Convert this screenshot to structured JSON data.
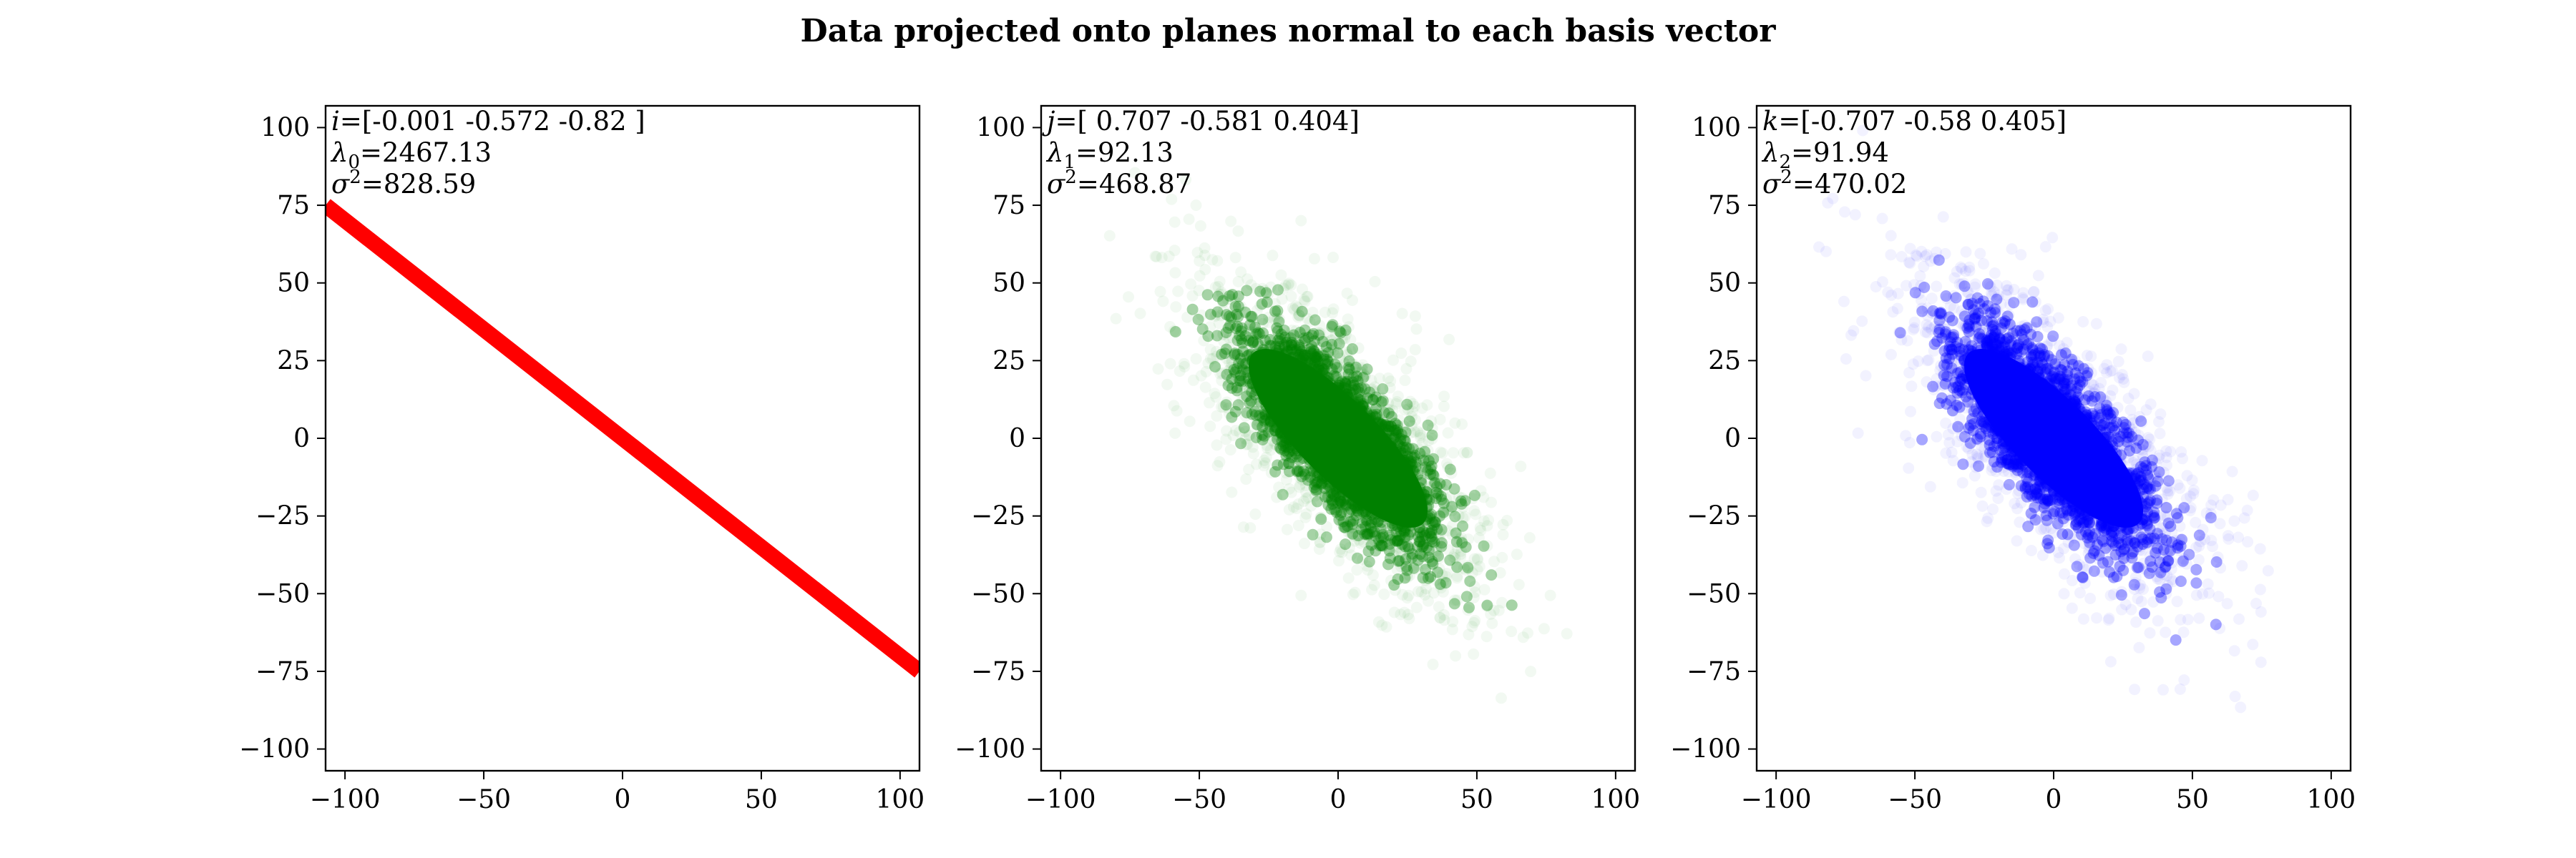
{
  "figure": {
    "title": "Data projected onto planes normal to each basis vector"
  },
  "chart_data": [
    {
      "type": "scatter",
      "title": "",
      "xlabel": "",
      "ylabel": "",
      "xlim": [
        -107,
        107
      ],
      "ylim": [
        -107,
        107
      ],
      "xticks": [
        -100,
        -50,
        0,
        50,
        100
      ],
      "yticks": [
        -100,
        -75,
        -50,
        -25,
        0,
        25,
        50,
        75,
        100
      ],
      "color": "#ff0000",
      "annotation": {
        "vector_label": "i",
        "vector_value": "=[-0.001 -0.572 -0.82 ]",
        "eigen_label": "λ",
        "eigen_index": "0",
        "eigen_value": "=2467.13",
        "variance_label": "σ",
        "variance_exp": "2",
        "variance_value": "=828.59"
      },
      "series": [
        {
          "shape": "line",
          "x": [
            -107,
            107
          ],
          "y": [
            75,
            -75
          ]
        }
      ]
    },
    {
      "type": "scatter",
      "title": "",
      "xlabel": "",
      "ylabel": "",
      "xlim": [
        -107,
        107
      ],
      "ylim": [
        -107,
        107
      ],
      "xticks": [
        -100,
        -50,
        0,
        50,
        100
      ],
      "yticks": [
        -100,
        -75,
        -50,
        -25,
        0,
        25,
        50,
        75,
        100
      ],
      "color": "#008000",
      "annotation": {
        "vector_label": "j",
        "vector_value": "=[ 0.707 -0.581  0.404]",
        "eigen_label": "λ",
        "eigen_index": "1",
        "eigen_value": "=92.13",
        "variance_label": "σ",
        "variance_exp": "2",
        "variance_value": "=468.87"
      },
      "series": [
        {
          "shape": "cloud",
          "center": [
            0,
            0
          ],
          "slope": -1.0,
          "major_sd": 28,
          "minor_sd": 9,
          "extent_x": [
            -80,
            75
          ],
          "extent_y": [
            -95,
            85
          ]
        }
      ]
    },
    {
      "type": "scatter",
      "title": "",
      "xlabel": "",
      "ylabel": "",
      "xlim": [
        -107,
        107
      ],
      "ylim": [
        -107,
        107
      ],
      "xticks": [
        -100,
        -50,
        0,
        50,
        100
      ],
      "yticks": [
        -100,
        -75,
        -50,
        -25,
        0,
        25,
        50,
        75,
        100
      ],
      "color": "#0000ff",
      "annotation": {
        "vector_label": "k",
        "vector_value": "=[-0.707 -0.58   0.405]",
        "eigen_label": "λ",
        "eigen_index": "2",
        "eigen_value": "=91.94",
        "variance_label": "σ",
        "variance_exp": "2",
        "variance_value": "=470.02"
      },
      "series": [
        {
          "shape": "cloud",
          "center": [
            0,
            0
          ],
          "slope": -1.0,
          "major_sd": 28,
          "minor_sd": 9,
          "extent_x": [
            -80,
            75
          ],
          "extent_y": [
            -95,
            85
          ]
        }
      ]
    }
  ]
}
